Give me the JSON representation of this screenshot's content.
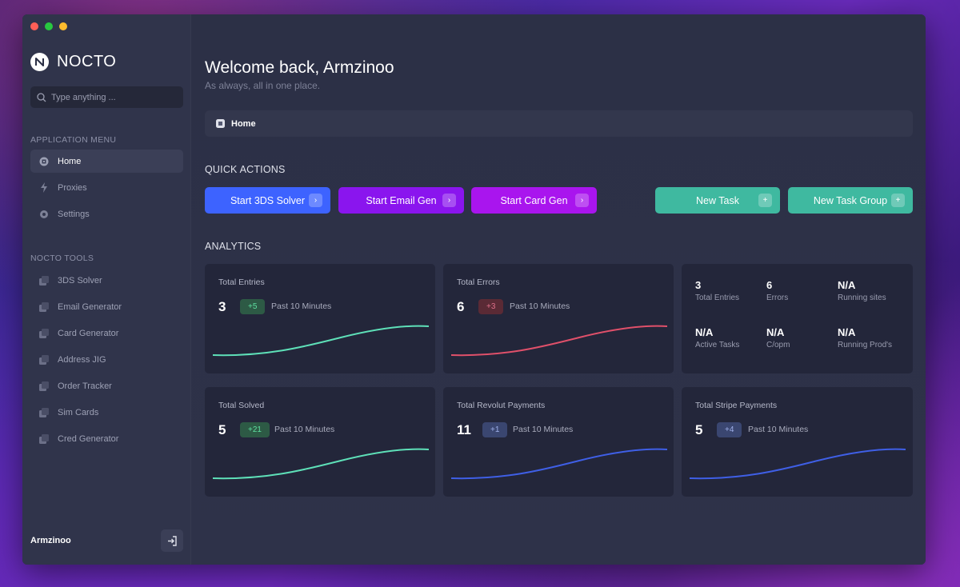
{
  "app": {
    "name": "NOCTO"
  },
  "search": {
    "placeholder": "Type anything ..."
  },
  "sidebar": {
    "menu_title": "APPLICATION MENU",
    "menu_items": [
      {
        "label": "Home",
        "icon": "home-icon",
        "active": true
      },
      {
        "label": "Proxies",
        "icon": "bolt-icon"
      },
      {
        "label": "Settings",
        "icon": "gear-icon"
      }
    ],
    "tools_title": "NOCTO TOOLS",
    "tools": [
      {
        "label": "3DS Solver"
      },
      {
        "label": "Email Generator"
      },
      {
        "label": "Card Generator"
      },
      {
        "label": "Address JIG"
      },
      {
        "label": "Order Tracker"
      },
      {
        "label": "Sim Cards"
      },
      {
        "label": "Cred Generator"
      }
    ],
    "user": "Armzinoo"
  },
  "header": {
    "welcome": "Welcome back, Armzinoo",
    "subtitle": "As always, all in one place.",
    "breadcrumb": "Home"
  },
  "quick_actions": {
    "title": "QUICK ACTIONS",
    "buttons": [
      {
        "label": "Start 3DS Solver",
        "color": "#3d63ff"
      },
      {
        "label": "Start Email Gen",
        "color": "#8a15ee"
      },
      {
        "label": "Start Card Gen",
        "color": "#a915ee"
      },
      {
        "label": "New Task",
        "color": "#3fb9a0"
      },
      {
        "label": "New Task Group",
        "color": "#3fb9a0"
      }
    ]
  },
  "analytics": {
    "title": "ANALYTICS",
    "cards": [
      {
        "title": "Total Entries",
        "value": "3",
        "badge": "+5",
        "period": "Past 10 Minutes",
        "color": "#5ee0b8"
      },
      {
        "title": "Total Errors",
        "value": "6",
        "badge": "+3",
        "period": "Past 10 Minutes",
        "color": "#e0506a"
      },
      {
        "title": "Total Solved",
        "value": "5",
        "badge": "+21",
        "period": "Past 10 Minutes",
        "color": "#5ee0b8"
      },
      {
        "title": "Total Revolut Payments",
        "value": "11",
        "badge": "+1",
        "period": "Past 10 Minutes",
        "color": "#3f5fe6"
      },
      {
        "title": "Total Stripe Payments",
        "value": "5",
        "badge": "+4",
        "period": "Past 10 Minutes",
        "color": "#3f5fe6"
      }
    ],
    "stats": [
      {
        "value": "3",
        "label": "Total Entries"
      },
      {
        "value": "6",
        "label": "Errors"
      },
      {
        "value": "N/A",
        "label": "Running sites"
      },
      {
        "value": "N/A",
        "label": "Active Tasks"
      },
      {
        "value": "N/A",
        "label": "C/opm"
      },
      {
        "value": "N/A",
        "label": "Running Prod's"
      }
    ]
  }
}
